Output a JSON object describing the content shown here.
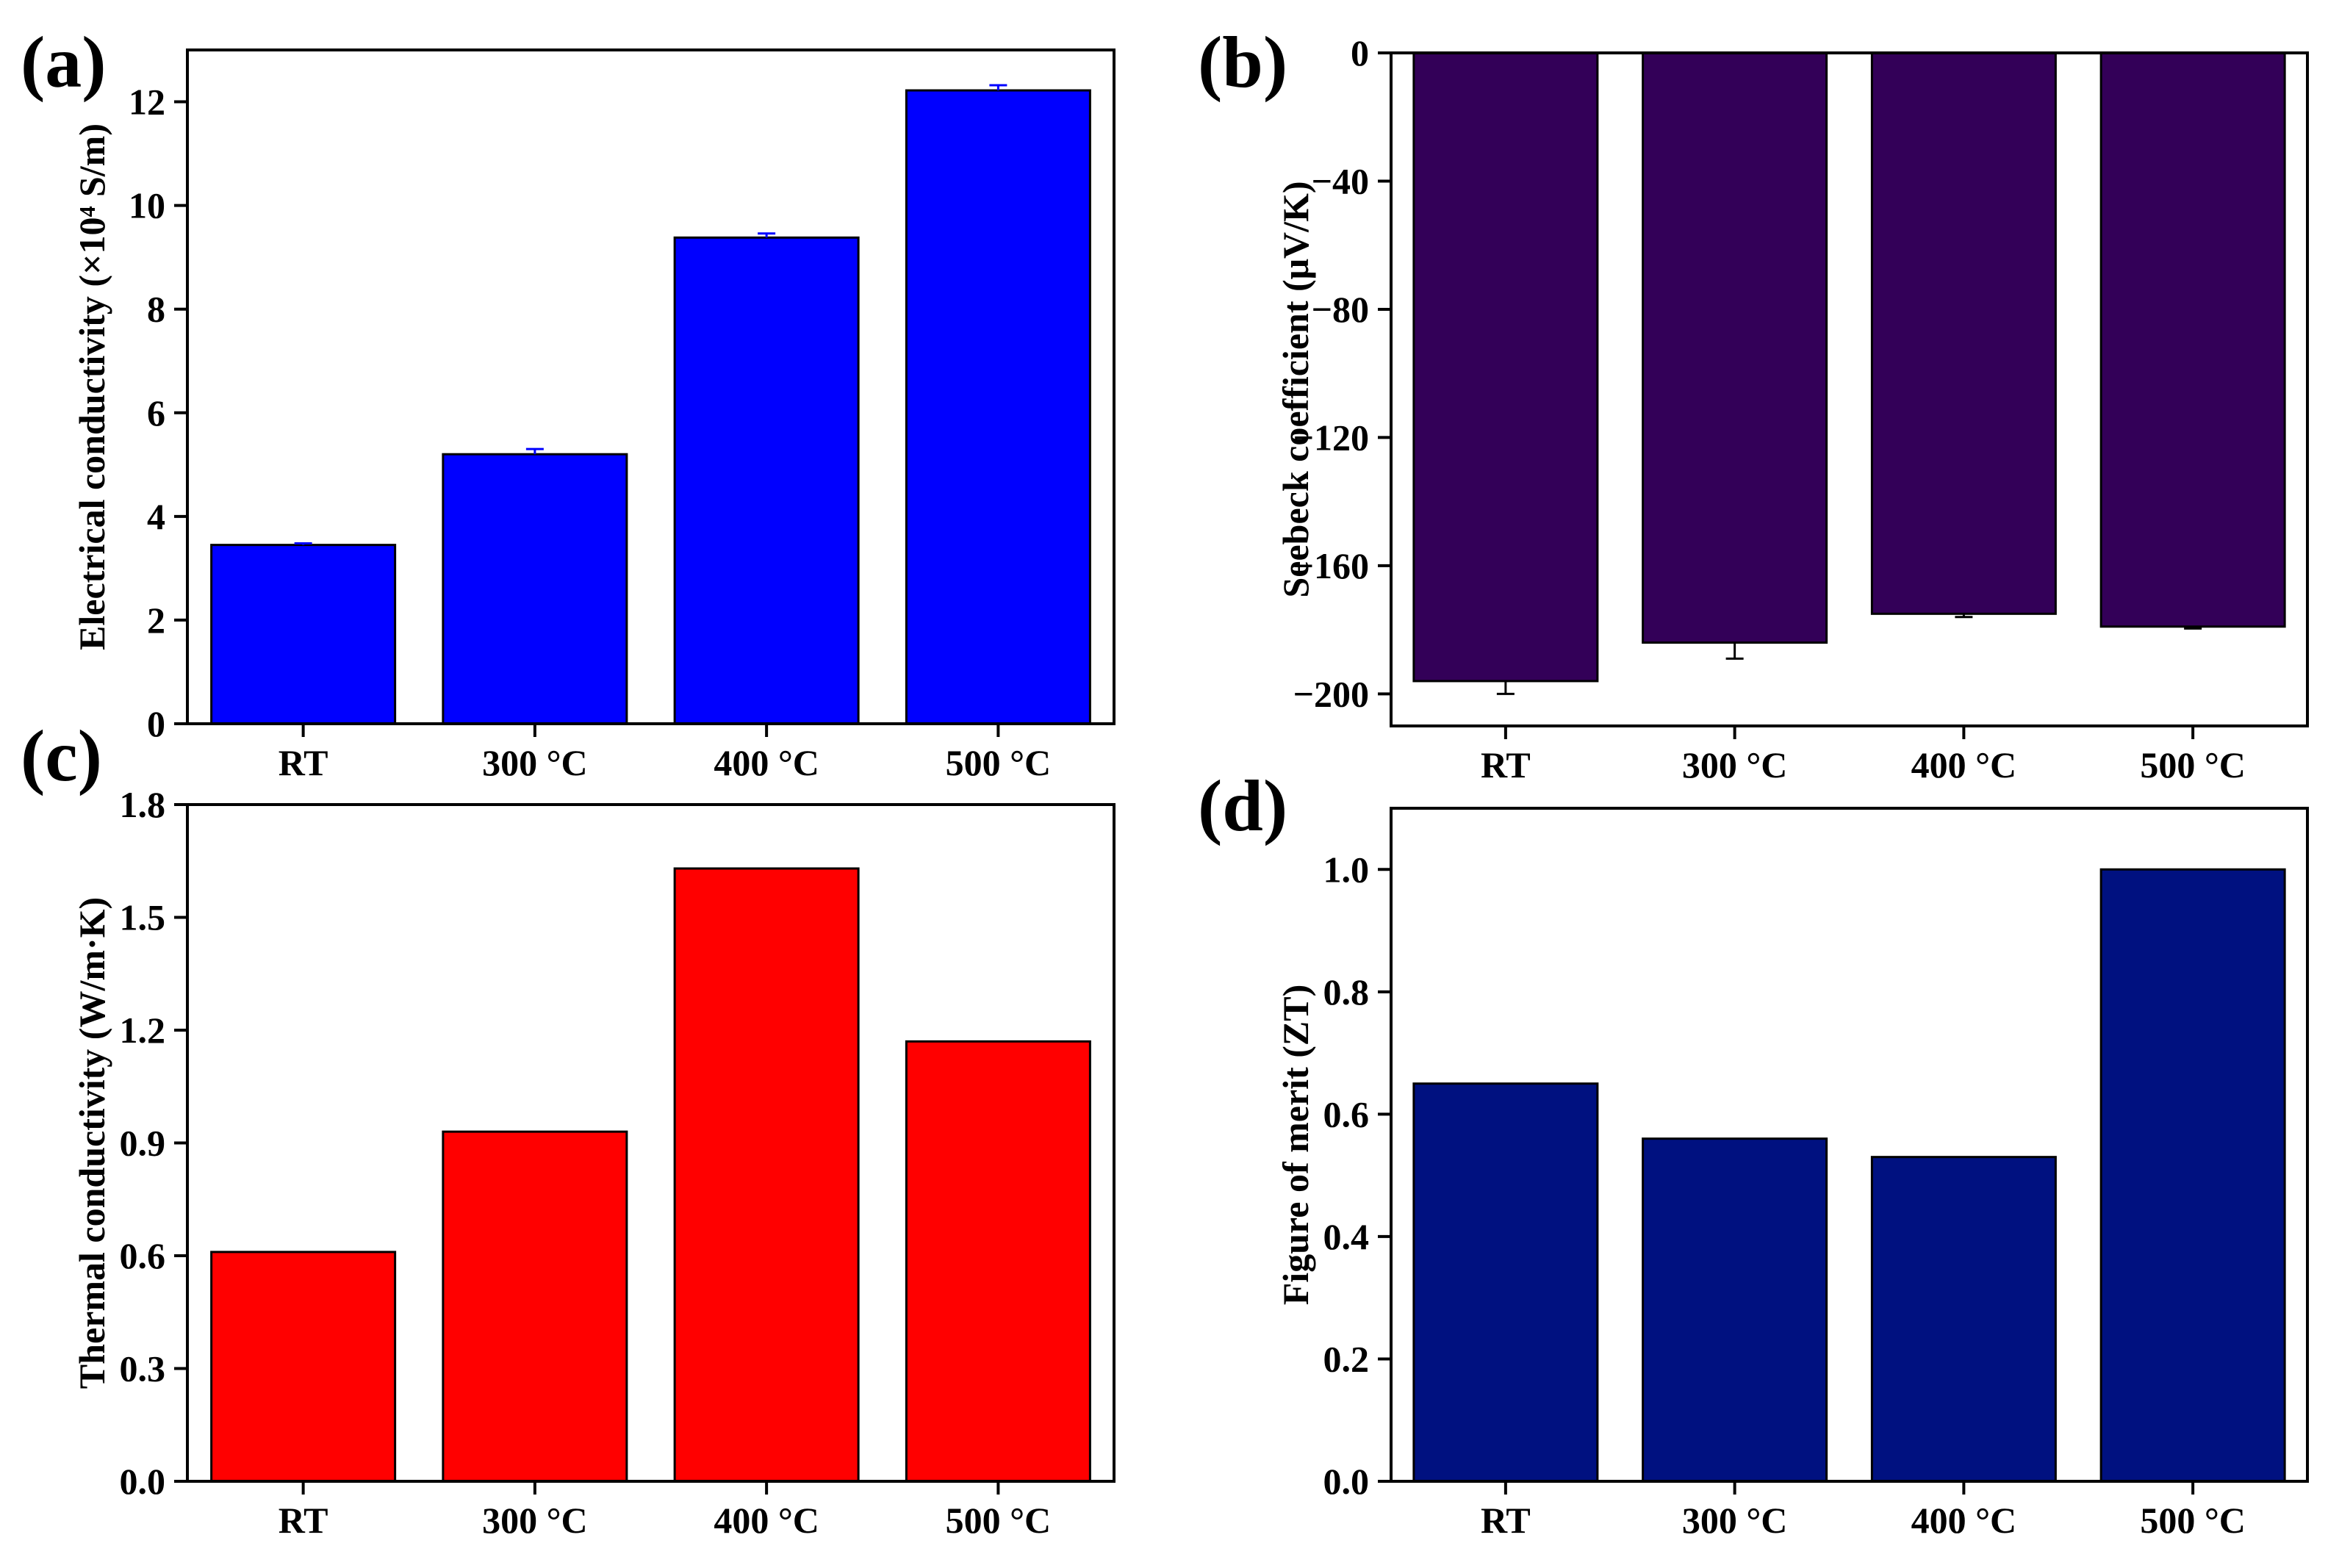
{
  "chart_data": [
    {
      "panel": "(a)",
      "type": "bar",
      "categories": [
        "RT",
        "300 °C",
        "400 °C",
        "500 °C"
      ],
      "values": [
        3.45,
        5.2,
        9.38,
        12.22
      ],
      "errors": [
        0.03,
        0.1,
        0.08,
        0.1
      ],
      "color": "#0000ff",
      "ylabel": "Electrical conductivity (×10⁴ S/m)",
      "ylim": [
        0,
        13
      ],
      "yticks": [
        0,
        2,
        4,
        6,
        8,
        10,
        12
      ],
      "ytick_labels": [
        "0",
        "2",
        "4",
        "6",
        "8",
        "10",
        "12"
      ]
    },
    {
      "panel": "(b)",
      "type": "bar",
      "categories": [
        "RT",
        "300 °C",
        "400 °C",
        "500 °C"
      ],
      "values": [
        -196,
        -184,
        -175,
        -179
      ],
      "errors": [
        4,
        5,
        1,
        0.6
      ],
      "color": "#330058",
      "ylabel": "Seebeck coefficient (μV/K)",
      "ylim": [
        -210,
        0
      ],
      "yticks": [
        0,
        -40,
        -80,
        -120,
        -160,
        -200
      ],
      "ytick_labels": [
        "0",
        "−40",
        "−80",
        "−120",
        "−160",
        "−200"
      ]
    },
    {
      "panel": "(c)",
      "type": "bar",
      "categories": [
        "RT",
        "300 °C",
        "400 °C",
        "500 °C"
      ],
      "values": [
        0.61,
        0.93,
        1.63,
        1.17
      ],
      "errors": [
        0,
        0,
        0,
        0
      ],
      "color": "#ff0000",
      "ylabel": "Thermal conductivity (W/m·K)",
      "ylim": [
        0,
        1.8
      ],
      "yticks": [
        0,
        0.3,
        0.6,
        0.9,
        1.2,
        1.5,
        1.8
      ],
      "ytick_labels": [
        "0.0",
        "0.3",
        "0.6",
        "0.9",
        "1.2",
        "1.5",
        "1.8"
      ]
    },
    {
      "panel": "(d)",
      "type": "bar",
      "categories": [
        "RT",
        "300 °C",
        "400 °C",
        "500 °C"
      ],
      "values": [
        0.65,
        0.56,
        0.53,
        1.0
      ],
      "errors": [
        0,
        0,
        0,
        0
      ],
      "color": "#001180",
      "ylabel": "Figure of merit (ZT)",
      "ylim": [
        0,
        1.1
      ],
      "yticks": [
        0,
        0.2,
        0.4,
        0.6,
        0.8,
        1.0
      ],
      "ytick_labels": [
        "0.0",
        "0.2",
        "0.4",
        "0.6",
        "0.8",
        "1.0"
      ]
    }
  ]
}
